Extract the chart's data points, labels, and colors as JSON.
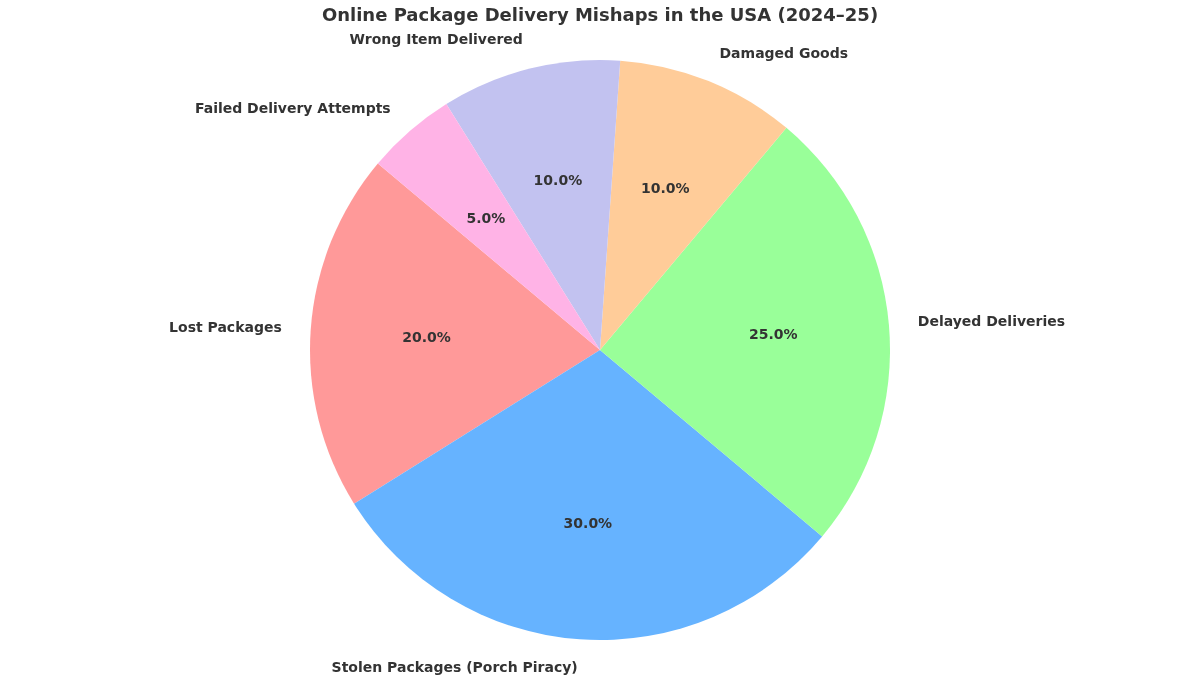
{
  "chart_data": {
    "type": "pie",
    "title": "Online Package Delivery Mishaps in the USA (2024–25)",
    "categories": [
      "Lost Packages",
      "Stolen Packages (Porch Piracy)",
      "Delayed Deliveries",
      "Damaged Goods",
      "Wrong Item Delivered",
      "Failed Delivery Attempts"
    ],
    "values": [
      20,
      30,
      25,
      10,
      10,
      5
    ],
    "colors": [
      "#ff9999",
      "#66b3ff",
      "#99ff99",
      "#ffcc99",
      "#c2c2f0",
      "#ffb3e6"
    ],
    "value_labels": [
      "20.0%",
      "30.0%",
      "25.0%",
      "10.0%",
      "10.0%",
      "5.0%"
    ]
  }
}
